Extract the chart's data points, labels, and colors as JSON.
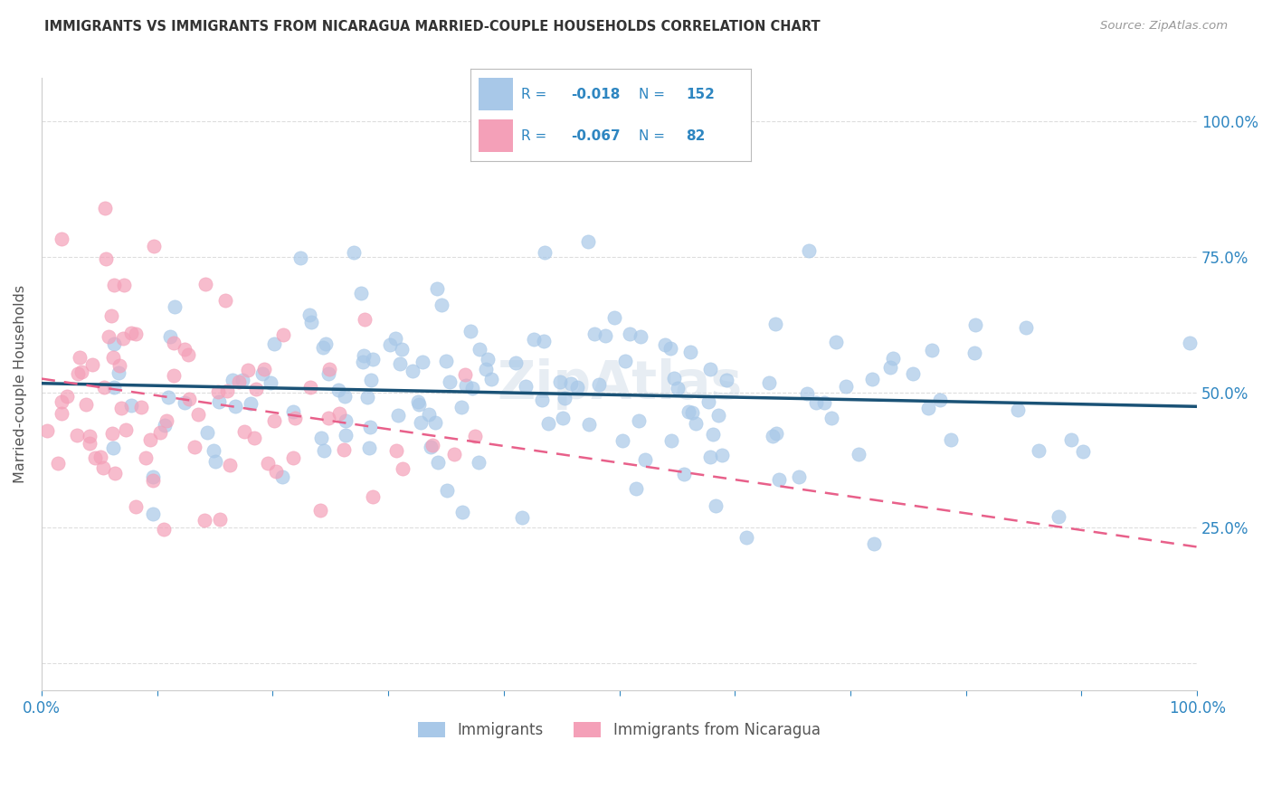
{
  "title": "IMMIGRANTS VS IMMIGRANTS FROM NICARAGUA MARRIED-COUPLE HOUSEHOLDS CORRELATION CHART",
  "source": "Source: ZipAtlas.com",
  "ylabel": "Married-couple Households",
  "watermark": "ZipAtlas",
  "legend_R1": "-0.018",
  "legend_N1": "152",
  "legend_R2": "-0.067",
  "legend_N2": "82",
  "series1": {
    "label": "Immigrants",
    "N": 152,
    "color": "#a8c8e8",
    "line_color": "#1a5276",
    "marker": "o"
  },
  "series2": {
    "label": "Immigrants from Nicaragua",
    "N": 82,
    "color": "#f4a0b8",
    "line_color": "#e8608a",
    "marker": "o"
  },
  "background_color": "#ffffff",
  "grid_color": "#cccccc",
  "title_color": "#333333",
  "axis_label_color": "#2e86c1",
  "seed": 42
}
